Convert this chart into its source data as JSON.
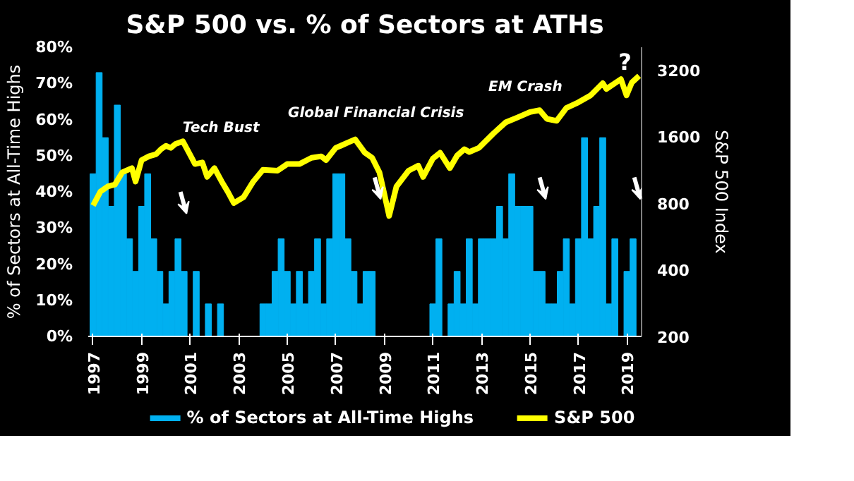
{
  "chart_data": {
    "type": "bar",
    "title": "S&P 500 vs. % of Sectors at ATHs",
    "ylabel": "% of Sectors at All-Time Highs",
    "y2label": "S&P 500 Index",
    "xlim": [
      1996.8,
      2019.6
    ],
    "xticks": [
      1997,
      1999,
      2001,
      2003,
      2005,
      2007,
      2009,
      2011,
      2013,
      2015,
      2017,
      2019
    ],
    "ylim": [
      0,
      80
    ],
    "yticks": [
      {
        "value": 0,
        "label": "0%"
      },
      {
        "value": 10,
        "label": "10%"
      },
      {
        "value": 20,
        "label": "20%"
      },
      {
        "value": 30,
        "label": "30%"
      },
      {
        "value": 40,
        "label": "40%"
      },
      {
        "value": 50,
        "label": "50%"
      },
      {
        "value": 60,
        "label": "60%"
      },
      {
        "value": 70,
        "label": "70%"
      },
      {
        "value": 80,
        "label": "80%"
      }
    ],
    "y2lim": [
      200,
      4040
    ],
    "y2ticks": [
      200,
      400,
      800,
      1600,
      3200
    ],
    "log": "y2",
    "grid": false,
    "legend": "bottom",
    "annotations": [
      "Tech Bust",
      "Global Financial Crisis",
      "EM Crash",
      "?"
    ],
    "series": [
      {
        "name": "% of Sectors at All-Time Highs",
        "color": "#00b0f0",
        "x": [
          1997.0,
          1997.25,
          1997.5,
          1997.75,
          1998.0,
          1998.25,
          1998.5,
          1998.75,
          1999.0,
          1999.25,
          1999.5,
          1999.75,
          2000.0,
          2000.25,
          2000.5,
          2000.75,
          2001.0,
          2001.25,
          2001.5,
          2001.75,
          2002.0,
          2002.25,
          2002.5,
          2002.75,
          2003.0,
          2003.25,
          2003.5,
          2003.75,
          2004.0,
          2004.25,
          2004.5,
          2004.75,
          2005.0,
          2005.25,
          2005.5,
          2005.75,
          2006.0,
          2006.25,
          2006.5,
          2006.75,
          2007.0,
          2007.25,
          2007.5,
          2007.75,
          2008.0,
          2008.25,
          2008.5,
          2008.75,
          2009.0,
          2009.25,
          2009.5,
          2009.75,
          2010.0,
          2010.25,
          2010.5,
          2010.75,
          2011.0,
          2011.25,
          2011.5,
          2011.75,
          2012.0,
          2012.25,
          2012.5,
          2012.75,
          2013.0,
          2013.25,
          2013.5,
          2013.75,
          2014.0,
          2014.25,
          2014.5,
          2014.75,
          2015.0,
          2015.25,
          2015.5,
          2015.75,
          2016.0,
          2016.25,
          2016.5,
          2016.75,
          2017.0,
          2017.25,
          2017.5,
          2017.75,
          2018.0,
          2018.25,
          2018.5,
          2018.75,
          2019.0,
          2019.25
        ],
        "values": [
          45,
          73,
          55,
          36,
          64,
          45,
          27,
          18,
          36,
          45,
          27,
          18,
          9,
          18,
          27,
          18,
          0,
          18,
          0,
          9,
          0,
          9,
          0,
          0,
          0,
          0,
          0,
          0,
          9,
          9,
          18,
          27,
          18,
          9,
          18,
          9,
          18,
          27,
          9,
          27,
          45,
          45,
          27,
          18,
          9,
          18,
          18,
          0,
          0,
          0,
          0,
          0,
          0,
          0,
          0,
          0,
          9,
          27,
          0,
          9,
          18,
          9,
          27,
          9,
          27,
          27,
          27,
          36,
          27,
          45,
          36,
          36,
          36,
          18,
          18,
          9,
          9,
          18,
          27,
          9,
          27,
          55,
          27,
          36,
          55,
          9,
          27,
          0,
          18,
          27
        ]
      },
      {
        "name": "S&P 500",
        "type": "line",
        "axis": "y2",
        "color": "#ffff00",
        "x": [
          1997.0,
          1997.3,
          1997.6,
          1997.9,
          1998.2,
          1998.6,
          1998.75,
          1999.0,
          1999.3,
          1999.6,
          1999.8,
          2000.0,
          2000.2,
          2000.4,
          2000.7,
          2001.0,
          2001.2,
          2001.5,
          2001.7,
          2002.0,
          2002.3,
          2002.55,
          2002.8,
          2003.2,
          2003.6,
          2004.0,
          2004.6,
          2005.0,
          2005.5,
          2006.0,
          2006.4,
          2006.6,
          2007.0,
          2007.2,
          2007.5,
          2007.8,
          2008.2,
          2008.5,
          2008.8,
          2009.0,
          2009.2,
          2009.5,
          2010.0,
          2010.4,
          2010.6,
          2011.0,
          2011.3,
          2011.7,
          2012.0,
          2012.3,
          2012.5,
          2012.9,
          2013.5,
          2014.0,
          2014.5,
          2015.0,
          2015.4,
          2015.7,
          2016.1,
          2016.5,
          2017.0,
          2017.5,
          2018.0,
          2018.15,
          2018.75,
          2018.98,
          2019.2,
          2019.35,
          2019.5
        ],
        "values": [
          780,
          900,
          950,
          970,
          1100,
          1150,
          1000,
          1250,
          1300,
          1330,
          1400,
          1450,
          1420,
          1480,
          1520,
          1320,
          1200,
          1220,
          1050,
          1150,
          1000,
          900,
          800,
          850,
          1000,
          1130,
          1120,
          1200,
          1200,
          1280,
          1300,
          1250,
          1420,
          1450,
          1500,
          1550,
          1350,
          1280,
          1100,
          880,
          700,
          950,
          1120,
          1180,
          1050,
          1270,
          1350,
          1150,
          1310,
          1400,
          1360,
          1420,
          1650,
          1850,
          1950,
          2060,
          2100,
          1920,
          1880,
          2150,
          2280,
          2450,
          2780,
          2620,
          2900,
          2450,
          2800,
          2900,
          3000
        ]
      }
    ]
  }
}
